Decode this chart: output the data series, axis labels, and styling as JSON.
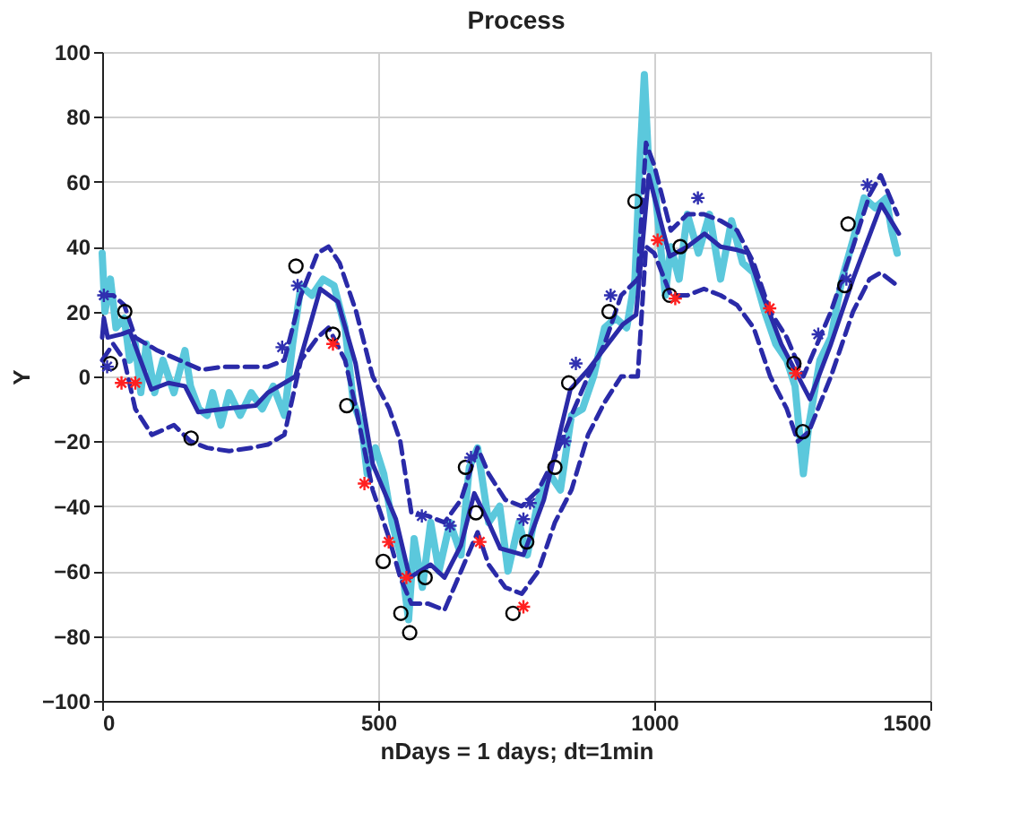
{
  "chart_data": {
    "type": "line",
    "title": "Process",
    "xlabel": "nDays = 1 days;  dt=1min",
    "ylabel": "Y",
    "xlim": [
      0,
      1500
    ],
    "xticks": [
      0,
      500,
      1000,
      1500
    ],
    "ylim": [
      -100,
      100
    ],
    "yticks": [
      -100,
      -80,
      -60,
      -40,
      -20,
      0,
      20,
      40,
      60,
      80,
      100
    ],
    "grid": true,
    "legend": false,
    "series": [
      {
        "type": "line",
        "color": "#5bc8dc",
        "line_style": "solid",
        "marker": "none",
        "x": [
          0,
          5,
          15,
          25,
          40,
          50,
          60,
          70,
          80,
          95,
          110,
          130,
          150,
          160,
          175,
          190,
          200,
          215,
          230,
          250,
          270,
          290,
          310,
          330,
          345,
          360,
          380,
          400,
          420,
          440,
          455,
          470,
          480,
          495,
          510,
          525,
          540,
          555,
          565,
          580,
          595,
          610,
          630,
          650,
          665,
          680,
          700,
          720,
          735,
          755,
          770,
          790,
          810,
          830,
          850,
          870,
          890,
          910,
          930,
          950,
          965,
          975,
          982,
          990,
          1000,
          1020,
          1030,
          1045,
          1060,
          1080,
          1100,
          1120,
          1140,
          1160,
          1180,
          1200,
          1220,
          1240,
          1255,
          1270,
          1280,
          1300,
          1320,
          1340,
          1360,
          1380,
          1400,
          1420,
          1430,
          1440
        ],
        "values": [
          38,
          20,
          30,
          15,
          18,
          5,
          10,
          -5,
          10,
          -5,
          5,
          -5,
          8,
          -3,
          -10,
          -12,
          -5,
          -15,
          -5,
          -12,
          -5,
          -10,
          -3,
          -12,
          10,
          28,
          25,
          30,
          28,
          15,
          -8,
          -15,
          -30,
          -22,
          -30,
          -45,
          -55,
          -75,
          -50,
          -65,
          -45,
          -60,
          -45,
          -55,
          -28,
          -22,
          -45,
          -40,
          -60,
          -45,
          -55,
          -38,
          -30,
          -35,
          -12,
          -10,
          0,
          15,
          18,
          15,
          30,
          70,
          93,
          65,
          60,
          25,
          40,
          30,
          50,
          38,
          50,
          30,
          48,
          35,
          32,
          20,
          10,
          5,
          -3,
          -30,
          -15,
          5,
          12,
          30,
          42,
          55,
          52,
          55,
          45,
          38
        ]
      },
      {
        "type": "line",
        "color": "#2a2aa8",
        "line_style": "dashed",
        "marker": "none",
        "x": [
          0,
          20,
          40,
          60,
          100,
          140,
          180,
          220,
          260,
          300,
          330,
          360,
          390,
          410,
          430,
          460,
          490,
          520,
          540,
          560,
          590,
          620,
          650,
          680,
          700,
          730,
          760,
          790,
          820,
          850,
          880,
          910,
          940,
          970,
          985,
          1000,
          1030,
          1060,
          1090,
          1120,
          1150,
          1180,
          1210,
          1240,
          1270,
          1290,
          1320,
          1360,
          1390,
          1410,
          1440
        ],
        "values": [
          25,
          25,
          22,
          12,
          8,
          5,
          2,
          3,
          3,
          3,
          5,
          25,
          38,
          40,
          35,
          20,
          0,
          -10,
          -20,
          -42,
          -43,
          -45,
          -38,
          -22,
          -30,
          -38,
          -40,
          -35,
          -25,
          -12,
          0,
          10,
          25,
          30,
          72,
          65,
          45,
          50,
          50,
          48,
          45,
          35,
          20,
          12,
          0,
          8,
          20,
          40,
          56,
          62,
          50
        ]
      },
      {
        "type": "line",
        "color": "#2a2aa8",
        "line_style": "dashed",
        "marker": "none",
        "x": [
          0,
          20,
          40,
          60,
          90,
          130,
          160,
          190,
          230,
          270,
          300,
          330,
          360,
          390,
          410,
          440,
          460,
          490,
          520,
          540,
          560,
          590,
          620,
          650,
          680,
          700,
          730,
          760,
          790,
          820,
          850,
          880,
          910,
          940,
          970,
          985,
          1000,
          1030,
          1060,
          1090,
          1120,
          1150,
          1180,
          1210,
          1240,
          1260,
          1280,
          1320,
          1360,
          1390,
          1410,
          1440
        ],
        "values": [
          5,
          10,
          5,
          -10,
          -18,
          -15,
          -20,
          -22,
          -23,
          -22,
          -21,
          -18,
          5,
          12,
          15,
          5,
          -10,
          -35,
          -50,
          -62,
          -70,
          -70,
          -72,
          -60,
          -48,
          -58,
          -65,
          -67,
          -60,
          -45,
          -35,
          -18,
          -8,
          0,
          0,
          40,
          38,
          25,
          25,
          27,
          25,
          22,
          15,
          0,
          -10,
          -20,
          -17,
          0,
          20,
          30,
          32,
          28
        ]
      },
      {
        "type": "line",
        "color": "#2a2aa8",
        "line_style": "solid",
        "marker": "none",
        "x": [
          0,
          3,
          10,
          35,
          50,
          89,
          120,
          150,
          174,
          220,
          278,
          300,
          350,
          395,
          427,
          459,
          490,
          532,
          557,
          595,
          620,
          650,
          674,
          700,
          721,
          763,
          800,
          848,
          880,
          943,
          967,
          990,
          1028,
          1060,
          1091,
          1120,
          1150,
          1170,
          1190,
          1230,
          1282,
          1320,
          1360,
          1411,
          1443
        ],
        "values": [
          12,
          18,
          12,
          13,
          14,
          -4,
          -2,
          -3,
          -11,
          -10,
          -9,
          -5,
          0,
          27,
          23,
          4,
          -27,
          -44,
          -62,
          -58,
          -62,
          -52,
          -36,
          -45,
          -53,
          -55,
          -38,
          -4,
          2,
          16,
          19,
          62,
          37,
          40,
          44,
          40,
          39,
          38,
          28,
          10,
          -7,
          10,
          30,
          53,
          44
        ]
      },
      {
        "type": "scatter",
        "color": "#000000",
        "marker": "circle",
        "x": [
          15,
          41,
          161,
          351,
          418,
          443,
          509,
          541,
          557,
          585,
          658,
          677,
          744,
          769,
          820,
          845,
          918,
          965,
          1028,
          1047,
          1253,
          1269,
          1345,
          1351
        ],
        "values": [
          4,
          20,
          -19,
          34,
          13,
          -9,
          -57,
          -73,
          -79,
          -62,
          -28,
          -42,
          -73,
          -51,
          -28,
          -2,
          20,
          54,
          25,
          40,
          4,
          -17,
          28,
          47
        ]
      },
      {
        "type": "scatter",
        "color": "#ff2020",
        "marker": "cross",
        "x": [
          35,
          60,
          418,
          475,
          519,
          551,
          684,
          763,
          1006,
          1038,
          1209,
          1256
        ],
        "values": [
          -2,
          -2,
          10,
          -33,
          -51,
          -62,
          -51,
          -71,
          42,
          24,
          21,
          1
        ]
      },
      {
        "type": "scatter",
        "color": "#3030b0",
        "marker": "cross",
        "x": [
          3,
          9,
          326,
          354,
          579,
          630,
          668,
          763,
          775,
          838,
          858,
          921,
          1079,
          1297,
          1348,
          1386
        ],
        "values": [
          25,
          3,
          9,
          28,
          -43,
          -46,
          -25,
          -44,
          -39,
          -20,
          4,
          25,
          55,
          13,
          30,
          59
        ]
      }
    ]
  }
}
